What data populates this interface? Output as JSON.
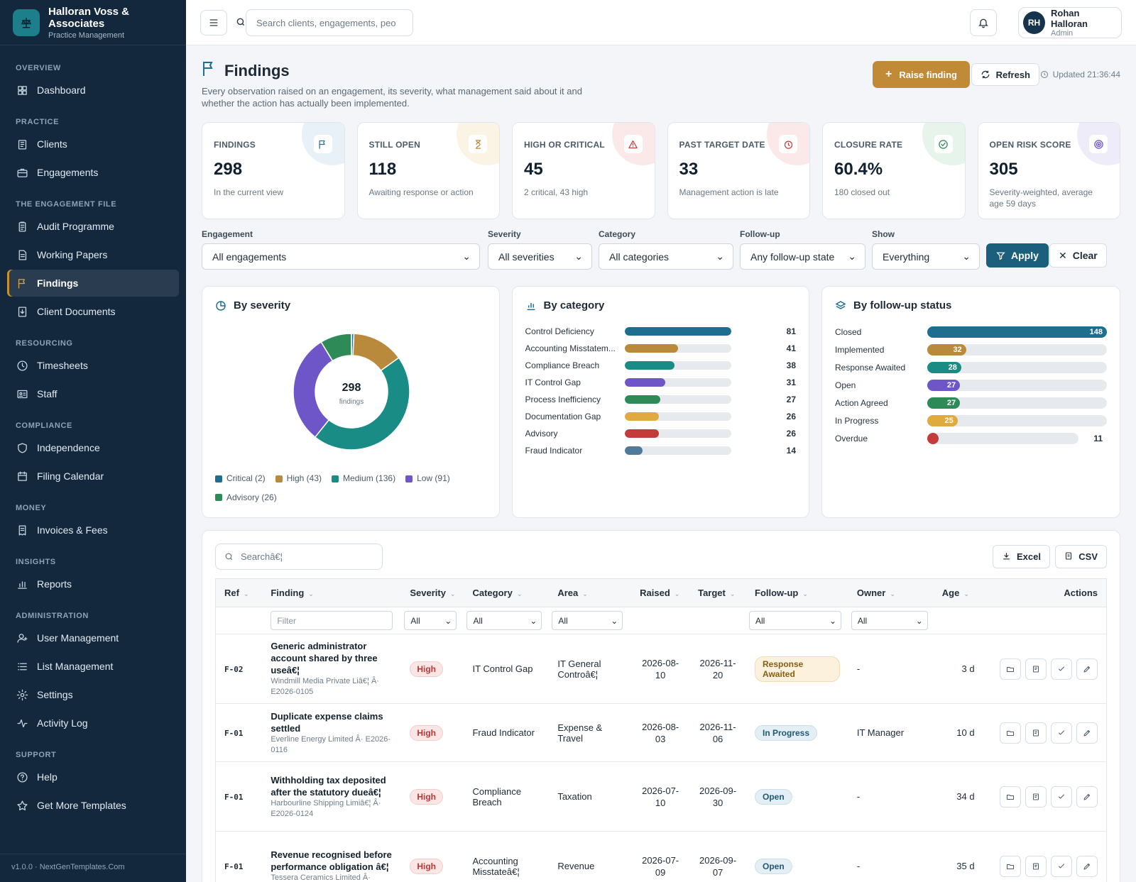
{
  "brand": {
    "name": "Halloran Voss & Associates",
    "subtitle": "Practice Management"
  },
  "nav": [
    {
      "section": "OVERVIEW",
      "items": [
        {
          "label": "Dashboard",
          "icon": "dashboard-icon"
        }
      ]
    },
    {
      "section": "PRACTICE",
      "items": [
        {
          "label": "Clients",
          "icon": "clients-icon"
        },
        {
          "label": "Engagements",
          "icon": "briefcase-icon"
        }
      ]
    },
    {
      "section": "THE ENGAGEMENT FILE",
      "items": [
        {
          "label": "Audit Programme",
          "icon": "clipboard-icon"
        },
        {
          "label": "Working Papers",
          "icon": "document-icon"
        },
        {
          "label": "Findings",
          "icon": "flag-icon",
          "active": true
        },
        {
          "label": "Client Documents",
          "icon": "download-doc-icon"
        }
      ]
    },
    {
      "section": "RESOURCING",
      "items": [
        {
          "label": "Timesheets",
          "icon": "clock-icon"
        },
        {
          "label": "Staff",
          "icon": "id-card-icon"
        }
      ]
    },
    {
      "section": "COMPLIANCE",
      "items": [
        {
          "label": "Independence",
          "icon": "shield-icon"
        },
        {
          "label": "Filing Calendar",
          "icon": "calendar-icon"
        }
      ]
    },
    {
      "section": "MONEY",
      "items": [
        {
          "label": "Invoices & Fees",
          "icon": "invoice-icon"
        }
      ]
    },
    {
      "section": "INSIGHTS",
      "items": [
        {
          "label": "Reports",
          "icon": "bar-chart-icon"
        }
      ]
    },
    {
      "section": "ADMINISTRATION",
      "items": [
        {
          "label": "User Management",
          "icon": "user-icon"
        },
        {
          "label": "List Management",
          "icon": "list-icon"
        },
        {
          "label": "Settings",
          "icon": "gear-icon"
        },
        {
          "label": "Activity Log",
          "icon": "activity-icon"
        }
      ]
    },
    {
      "section": "SUPPORT",
      "items": [
        {
          "label": "Help",
          "icon": "help-icon"
        },
        {
          "label": "Get More Templates",
          "icon": "star-icon"
        }
      ]
    }
  ],
  "footer": "v1.0.0 · NextGenTemplates.Com",
  "topbar": {
    "search_placeholder": "Search clients, engagements, peo",
    "user": {
      "initials": "RH",
      "name": "Rohan Halloran",
      "role": "Admin"
    }
  },
  "page": {
    "title": "Findings",
    "description": "Every observation raised on an engagement, its severity, what management said about it and whether the action has actually been implemented.",
    "raise_label": "Raise finding",
    "refresh_label": "Refresh",
    "updated": "Updated 21:36:44"
  },
  "kpis": [
    {
      "label": "FINDINGS",
      "value": "298",
      "sub": "In the current view",
      "icon": "flag-icon",
      "color": "#2b6f93",
      "tint": "#e8f1f7"
    },
    {
      "label": "STILL OPEN",
      "value": "118",
      "sub": "Awaiting response or action",
      "icon": "hourglass-icon",
      "color": "#c08a36",
      "tint": "#fbf3e4"
    },
    {
      "label": "HIGH OR CRITICAL",
      "value": "45",
      "sub": "2 critical, 43 high",
      "icon": "warning-icon",
      "color": "#c43b3b",
      "tint": "#fbe9e9"
    },
    {
      "label": "PAST TARGET DATE",
      "value": "33",
      "sub": "Management action is late",
      "icon": "alarm-icon",
      "color": "#c43b3b",
      "tint": "#fbe9e9"
    },
    {
      "label": "CLOSURE RATE",
      "value": "60.4%",
      "sub": "180 closed out",
      "icon": "check-circle-icon",
      "color": "#2a8a5a",
      "tint": "#e6f4ec"
    },
    {
      "label": "OPEN RISK SCORE",
      "value": "305",
      "sub": "Severity-weighted, average age 59 days",
      "icon": "target-icon",
      "color": "#6b54c9",
      "tint": "#efecfa"
    }
  ],
  "filters": {
    "engagement": {
      "label": "Engagement",
      "value": "All engagements"
    },
    "severity": {
      "label": "Severity",
      "value": "All severities"
    },
    "category": {
      "label": "Category",
      "value": "All categories"
    },
    "followup": {
      "label": "Follow-up",
      "value": "Any follow-up state"
    },
    "show": {
      "label": "Show",
      "value": "Everything"
    },
    "apply_label": "Apply",
    "clear_label": "Clear"
  },
  "chart_data": [
    {
      "type": "pie",
      "title": "By severity",
      "center_value": "298",
      "center_label": "findings",
      "categories": [
        "Critical",
        "High",
        "Medium",
        "Low",
        "Advisory"
      ],
      "values": [
        2,
        43,
        136,
        91,
        26
      ],
      "colors": [
        "#1f6e8f",
        "#b98a3c",
        "#1a8c86",
        "#6f56c8",
        "#2e8b57"
      ],
      "legend_labels": [
        "Critical (2)",
        "High (43)",
        "Medium (136)",
        "Low (91)",
        "Advisory (26)"
      ]
    },
    {
      "type": "bar",
      "title": "By category",
      "categories": [
        "Control Deficiency",
        "Accounting Misstatem...",
        "Compliance Breach",
        "IT Control Gap",
        "Process Inefficiency",
        "Documentation Gap",
        "Advisory",
        "Fraud Indicator"
      ],
      "values": [
        81,
        41,
        38,
        31,
        27,
        26,
        26,
        14
      ],
      "colors": [
        "#1f6e8f",
        "#b98a3c",
        "#1a8c86",
        "#6f56c8",
        "#2e8b57",
        "#dfaa3f",
        "#c43b3b",
        "#4f7a99"
      ],
      "xlim": [
        0,
        81
      ]
    },
    {
      "type": "bar",
      "title": "By follow-up status",
      "categories": [
        "Closed",
        "Implemented",
        "Response Awaited",
        "Open",
        "Action Agreed",
        "In Progress",
        "Overdue"
      ],
      "values": [
        148,
        32,
        28,
        27,
        27,
        25,
        11
      ],
      "colors": [
        "#1f6e8f",
        "#b98a3c",
        "#1a8c86",
        "#6f56c8",
        "#2e8b57",
        "#dfaa3f",
        "#c43b3b"
      ],
      "xlim": [
        0,
        148
      ]
    }
  ],
  "table": {
    "search_placeholder": "Searchâ€¦",
    "excel_label": "Excel",
    "csv_label": "CSV",
    "columns": [
      "Ref",
      "Finding",
      "Severity",
      "Category",
      "Area",
      "Raised",
      "Target",
      "Follow-up",
      "Owner",
      "Age",
      "Actions"
    ],
    "filter_placeholder": "Filter",
    "select_all": "All",
    "rows": [
      {
        "ref": "F-02",
        "title": "Generic administrator account shared by three useâ€¦",
        "sub": "Windmill Media Private Liâ€¦ Â· E2026-0105",
        "severity": "High",
        "category": "IT Control Gap",
        "area": "IT General Controâ€¦",
        "raised": "2026-08-10",
        "target": "2026-11-20",
        "followup": "Response Awaited",
        "followup_kind": "ra",
        "owner": "-",
        "age": "3 d"
      },
      {
        "ref": "F-01",
        "title": "Duplicate expense claims settled",
        "sub": "Everline Energy Limited Â· E2026-0116",
        "severity": "High",
        "category": "Fraud Indicator",
        "area": "Expense & Travel",
        "raised": "2026-08-03",
        "target": "2026-11-06",
        "followup": "In Progress",
        "followup_kind": "ip",
        "owner": "IT Manager",
        "age": "10 d"
      },
      {
        "ref": "F-01",
        "title": "Withholding tax deposited after the statutory dueâ€¦",
        "sub": "Harbourline Shipping Limiâ€¦ Â· E2026-0124",
        "severity": "High",
        "category": "Compliance Breach",
        "area": "Taxation",
        "raised": "2026-07-10",
        "target": "2026-09-30",
        "followup": "Open",
        "followup_kind": "op",
        "owner": "-",
        "age": "34 d"
      },
      {
        "ref": "F-01",
        "title": "Revenue recognised before performance obligation â€¦",
        "sub": "Tessera Ceramics Limited Â·",
        "severity": "High",
        "category": "Accounting Misstateâ€¦",
        "area": "Revenue",
        "raised": "2026-07-09",
        "target": "2026-09-07",
        "followup": "Open",
        "followup_kind": "op",
        "owner": "-",
        "age": "35 d"
      }
    ]
  }
}
